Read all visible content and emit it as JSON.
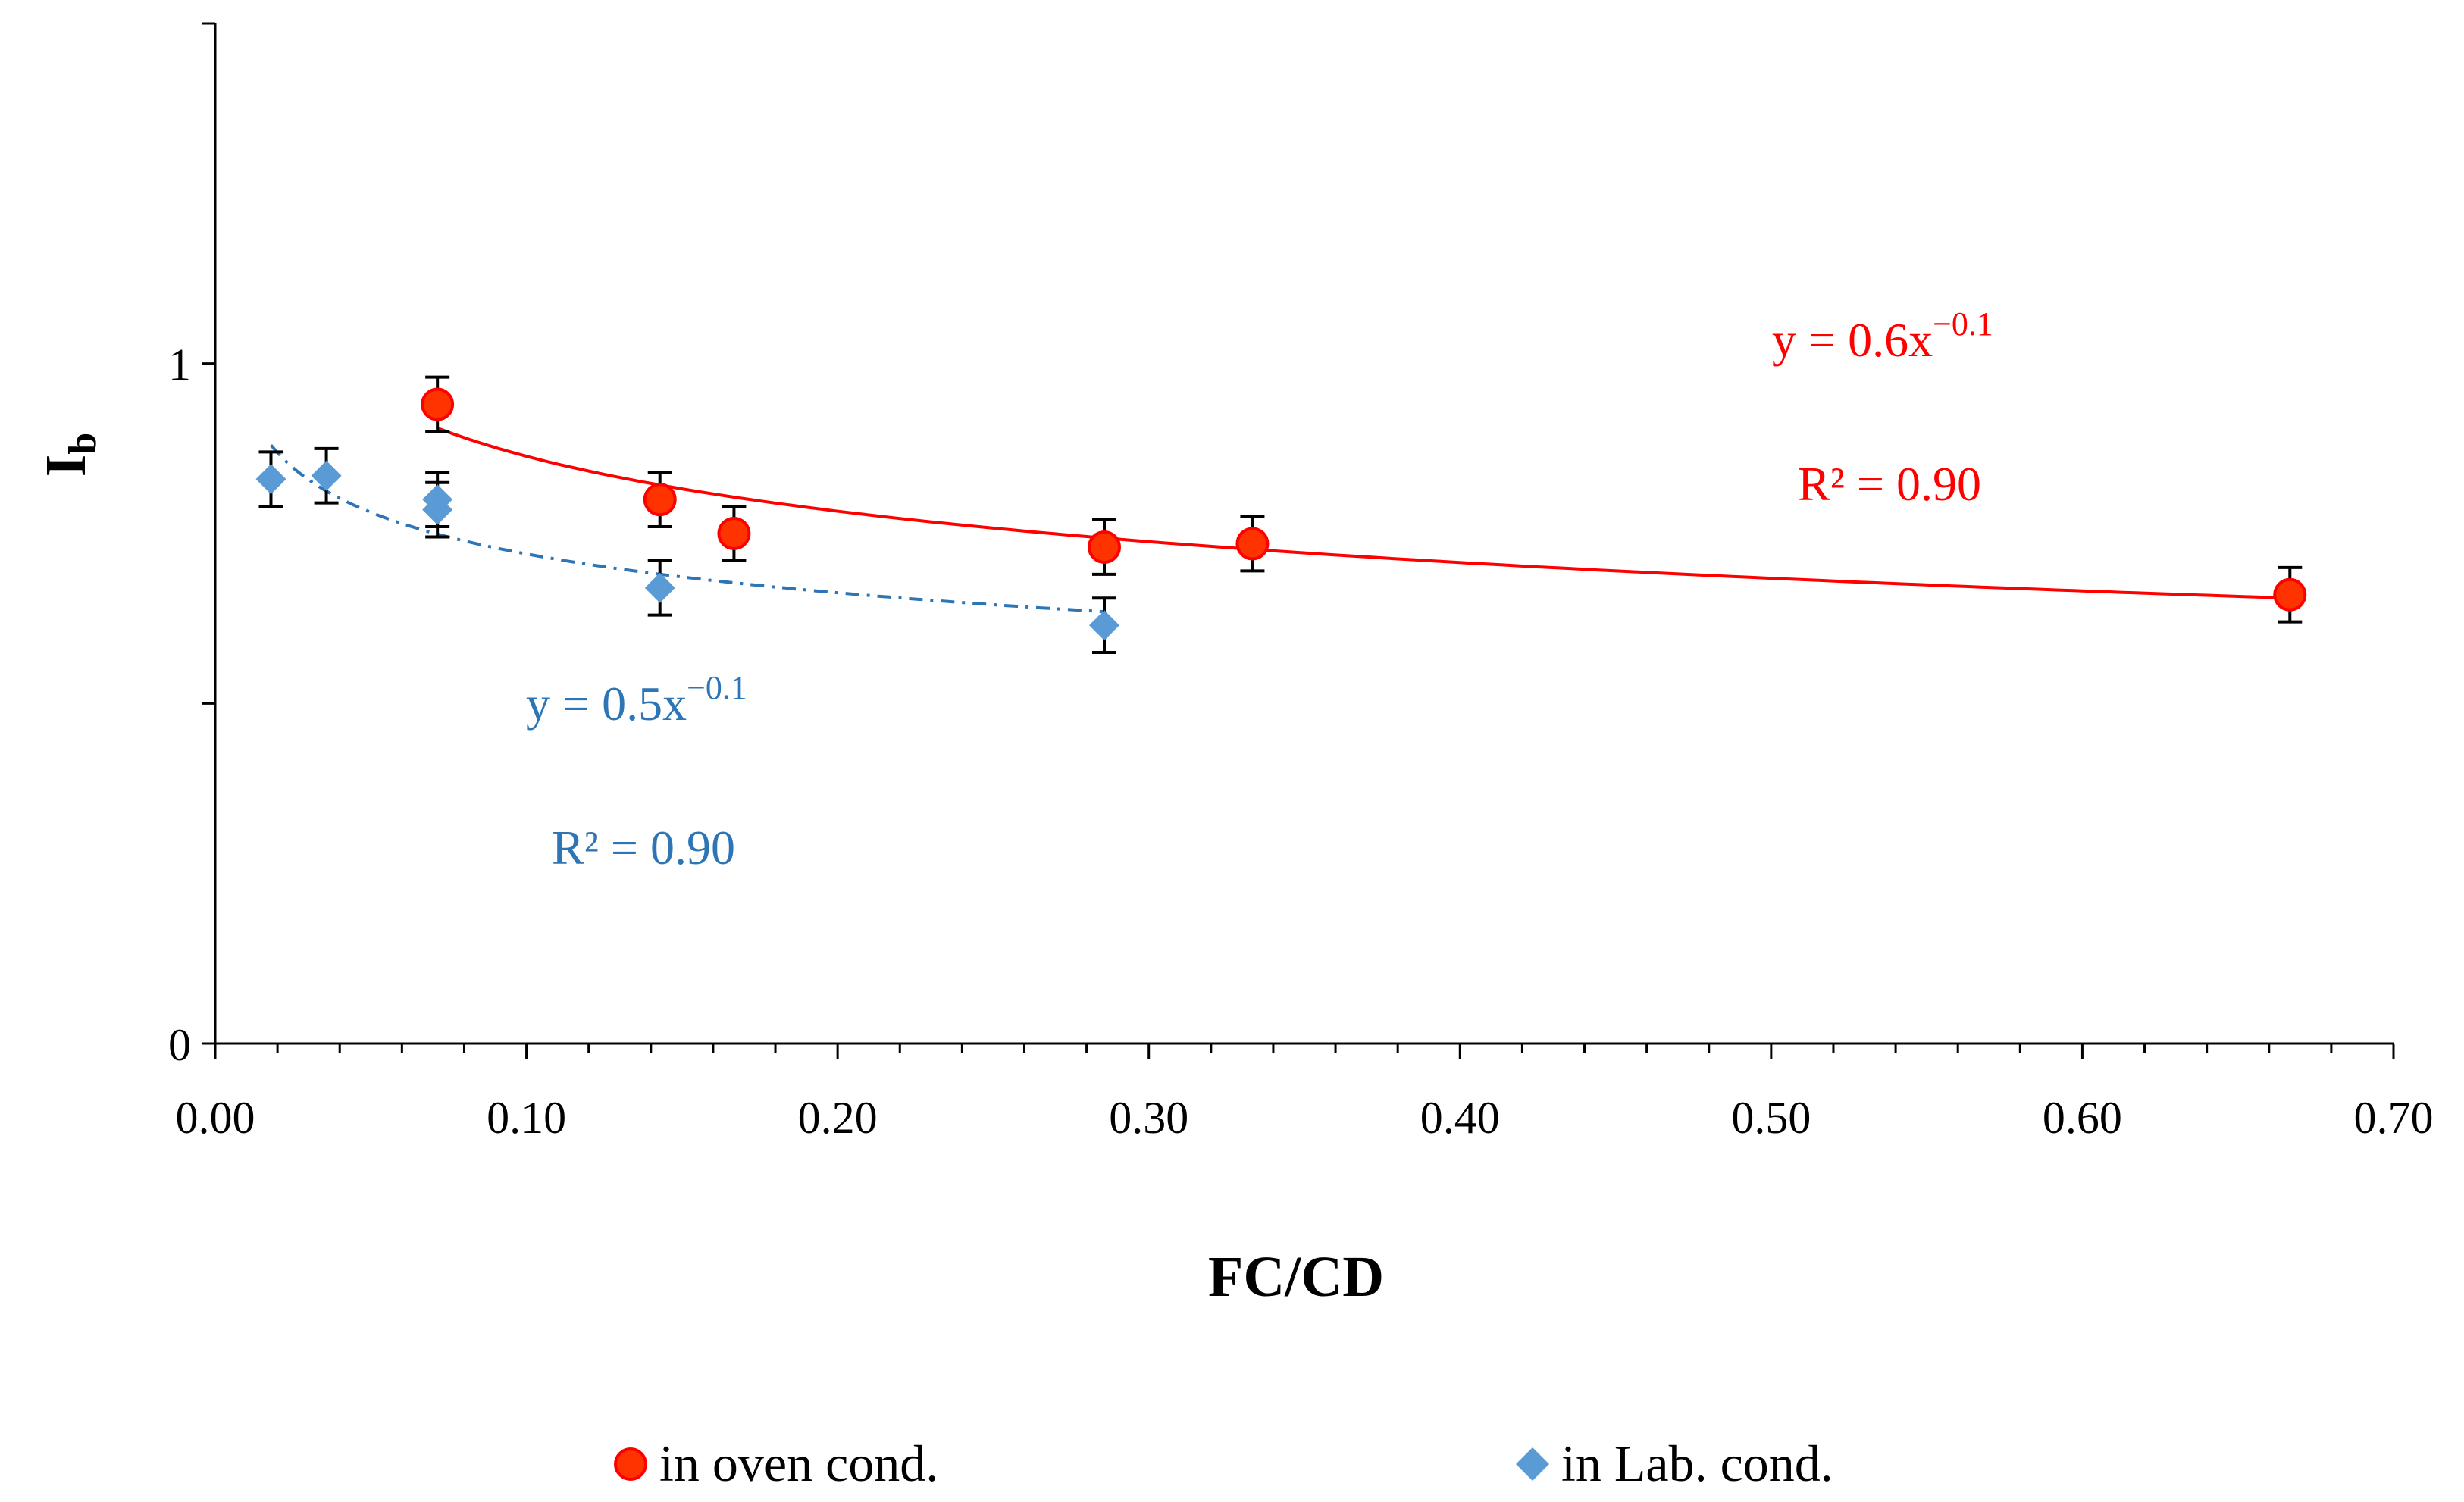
{
  "chart_data": {
    "type": "scatter",
    "title": "",
    "xlabel": "FC/CD",
    "ylabel_main": "I",
    "ylabel_sub": "b",
    "xlim": [
      0.0,
      0.7
    ],
    "ylim": [
      0,
      1.5
    ],
    "x_ticks": [
      0.0,
      0.1,
      0.2,
      0.3,
      0.4,
      0.5,
      0.6,
      0.7
    ],
    "x_tick_labels": [
      "0.00",
      "0.10",
      "0.20",
      "0.30",
      "0.40",
      "0.50",
      "0.60",
      "0.70"
    ],
    "y_ticks": [
      0,
      0.5,
      1.0,
      1.5
    ],
    "y_tick_labels": [
      "0",
      "",
      "1",
      ""
    ],
    "grid": false,
    "legend_position": "bottom",
    "series": [
      {
        "name": "in oven cond.",
        "marker": "circle",
        "color": "#ff3300",
        "edge_color": "#ff0000",
        "trend_color": "#ff0000",
        "trend_style": "solid",
        "x": [
          0.0714,
          0.1429,
          0.1667,
          0.2857,
          0.3333,
          0.6667
        ],
        "y": [
          0.94,
          0.8,
          0.75,
          0.73,
          0.735,
          0.66
        ],
        "error": 0.04,
        "trend": {
          "a": 0.6,
          "b": -0.1,
          "x_from": 0.0714,
          "x_to": 0.6667,
          "fit_y0": 0.905,
          "fit_y1": 0.655
        },
        "equation_prefix": "y = 0.6x",
        "equation_exponent": "−0.1",
        "r2": "R² = 0.90"
      },
      {
        "name": "in Lab. cond.",
        "marker": "diamond",
        "color": "#5b9bd5",
        "edge_color": "#5b9bd5",
        "trend_color": "#2e75b6",
        "trend_style": "dashdot",
        "x": [
          0.0179,
          0.0357,
          0.0714,
          0.0714,
          0.1429,
          0.2857
        ],
        "y": [
          0.83,
          0.835,
          0.8,
          0.785,
          0.67,
          0.615
        ],
        "error": 0.04,
        "trend": {
          "a": 0.5,
          "b": -0.1,
          "x_from": 0.0179,
          "x_to": 0.2857,
          "fit_y0": 0.88,
          "fit_y1": 0.635
        },
        "equation_prefix": "y = 0.5x",
        "equation_exponent": "−0.1",
        "r2": "R² = 0.90"
      }
    ]
  }
}
